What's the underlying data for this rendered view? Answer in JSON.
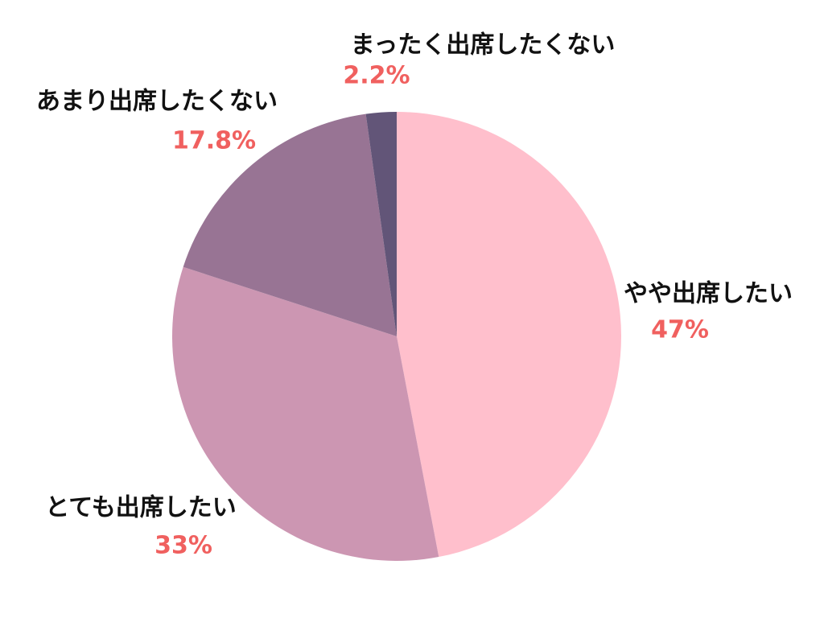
{
  "chart_data": {
    "type": "pie",
    "categories": [
      "やや出席したい",
      "とても出席したい",
      "あまり出席したくない",
      "まったく出席したくない"
    ],
    "values": [
      47,
      33,
      17.8,
      2.2
    ],
    "value_labels": [
      "47%",
      "33%",
      "17.8%",
      "2.2%"
    ],
    "colors": [
      "#ffbfcc",
      "#cc96b2",
      "#987494",
      "#625578"
    ]
  }
}
